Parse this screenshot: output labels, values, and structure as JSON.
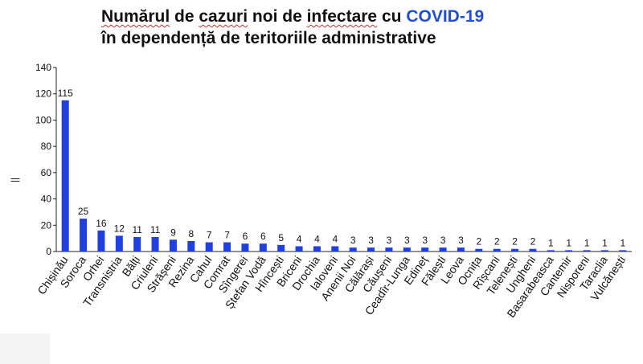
{
  "chart_data": {
    "type": "bar",
    "title": {
      "line1_parts": [
        {
          "text": "Numărul",
          "style": "squiggle"
        },
        {
          "text": " de ",
          "style": "plain"
        },
        {
          "text": "cazuri",
          "style": "squiggle"
        },
        {
          "text": " noi de ",
          "style": "plain"
        },
        {
          "text": "infectare",
          "style": "squiggle"
        },
        {
          "text": " cu ",
          "style": "plain"
        },
        {
          "text": "COVID-19",
          "style": "accent"
        }
      ],
      "line2": "în dependență de teritoriile administrative"
    },
    "ylabel": "||",
    "ylim": [
      0,
      140
    ],
    "yticks": [
      0,
      20,
      40,
      60,
      80,
      100,
      120,
      140
    ],
    "bar_color": "#1f3fe0",
    "categories": [
      "Chișinău",
      "Soroca",
      "Orhei",
      "Transnistria",
      "Bălți",
      "Criuleni",
      "Strășeni",
      "Rezina",
      "Cahul",
      "Comrat",
      "Sîngerei",
      "Ștefan Vodă",
      "Hîncești",
      "Briceni",
      "Drochia",
      "Ialoveni",
      "Anenii Noi",
      "Călărași",
      "Căușeni",
      "Ceadîr-Lunga",
      "Edineț",
      "Fălești",
      "Leova",
      "Ocnița",
      "Rîșcani",
      "Telenești",
      "Ungheni",
      "Basarabeasca",
      "Cantemir",
      "Nisporeni",
      "Taraclia",
      "Vulcănești"
    ],
    "values": [
      115,
      25,
      16,
      12,
      11,
      11,
      9,
      8,
      7,
      7,
      6,
      6,
      5,
      4,
      4,
      4,
      3,
      3,
      3,
      3,
      3,
      3,
      3,
      2,
      2,
      2,
      2,
      1,
      1,
      1,
      1,
      1
    ]
  }
}
